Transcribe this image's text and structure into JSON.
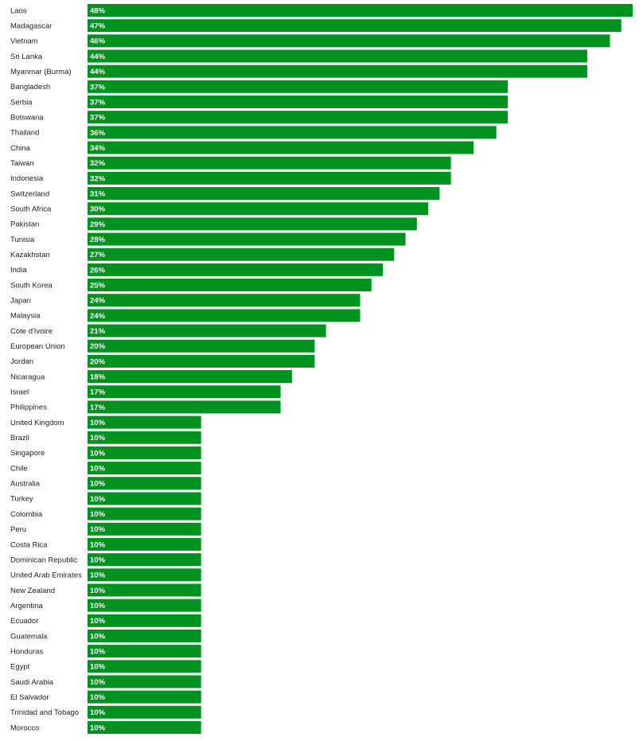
{
  "chart_data": {
    "type": "bar",
    "orientation": "horizontal",
    "bar_color": "#00921F",
    "value_label_color": "#FFFFFF",
    "category_label_color": "#222222",
    "title": "",
    "xlabel": "",
    "ylabel": "",
    "xlim": [
      0,
      48
    ],
    "grid": false,
    "legend": "none",
    "categories": [
      "Laos",
      "Madagascar",
      "Vietnam",
      "Sri Lanka",
      "Myanmar (Burma)",
      "Bangladesh",
      "Serbia",
      "Botswana",
      "Thailand",
      "China",
      "Taiwan",
      "Indonesia",
      "Switzerland",
      "South Africa",
      "Pakistan",
      "Tunisia",
      "Kazakhstan",
      "India",
      "South Korea",
      "Japan",
      "Malaysia",
      "Cote d'Ivoire",
      "European Union",
      "Jordan",
      "Nicaragua",
      "Israel",
      "Philippines",
      "United Kingdom",
      "Brazil",
      "Singapore",
      "Chile",
      "Australia",
      "Turkey",
      "Colombia",
      "Peru",
      "Costa Rica",
      "Dominican Republic",
      "United Arab Emirates",
      "New Zealand",
      "Argentina",
      "Ecuador",
      "Guatemala",
      "Honduras",
      "Egypt",
      "Saudi Arabia",
      "El Salvador",
      "Trinidad and Tobago",
      "Morocco"
    ],
    "values": [
      48,
      47,
      46,
      44,
      44,
      37,
      37,
      37,
      36,
      34,
      32,
      32,
      31,
      30,
      29,
      28,
      27,
      26,
      25,
      24,
      24,
      21,
      20,
      20,
      18,
      17,
      17,
      10,
      10,
      10,
      10,
      10,
      10,
      10,
      10,
      10,
      10,
      10,
      10,
      10,
      10,
      10,
      10,
      10,
      10,
      10,
      10,
      10
    ],
    "value_labels": [
      "48%",
      "47%",
      "46%",
      "44%",
      "44%",
      "37%",
      "37%",
      "37%",
      "36%",
      "34%",
      "32%",
      "32%",
      "31%",
      "30%",
      "29%",
      "28%",
      "27%",
      "26%",
      "25%",
      "24%",
      "24%",
      "21%",
      "20%",
      "20%",
      "18%",
      "17%",
      "17%",
      "10%",
      "10%",
      "10%",
      "10%",
      "10%",
      "10%",
      "10%",
      "10%",
      "10%",
      "10%",
      "10%",
      "10%",
      "10%",
      "10%",
      "10%",
      "10%",
      "10%",
      "10%",
      "10%",
      "10%",
      "10%"
    ]
  }
}
